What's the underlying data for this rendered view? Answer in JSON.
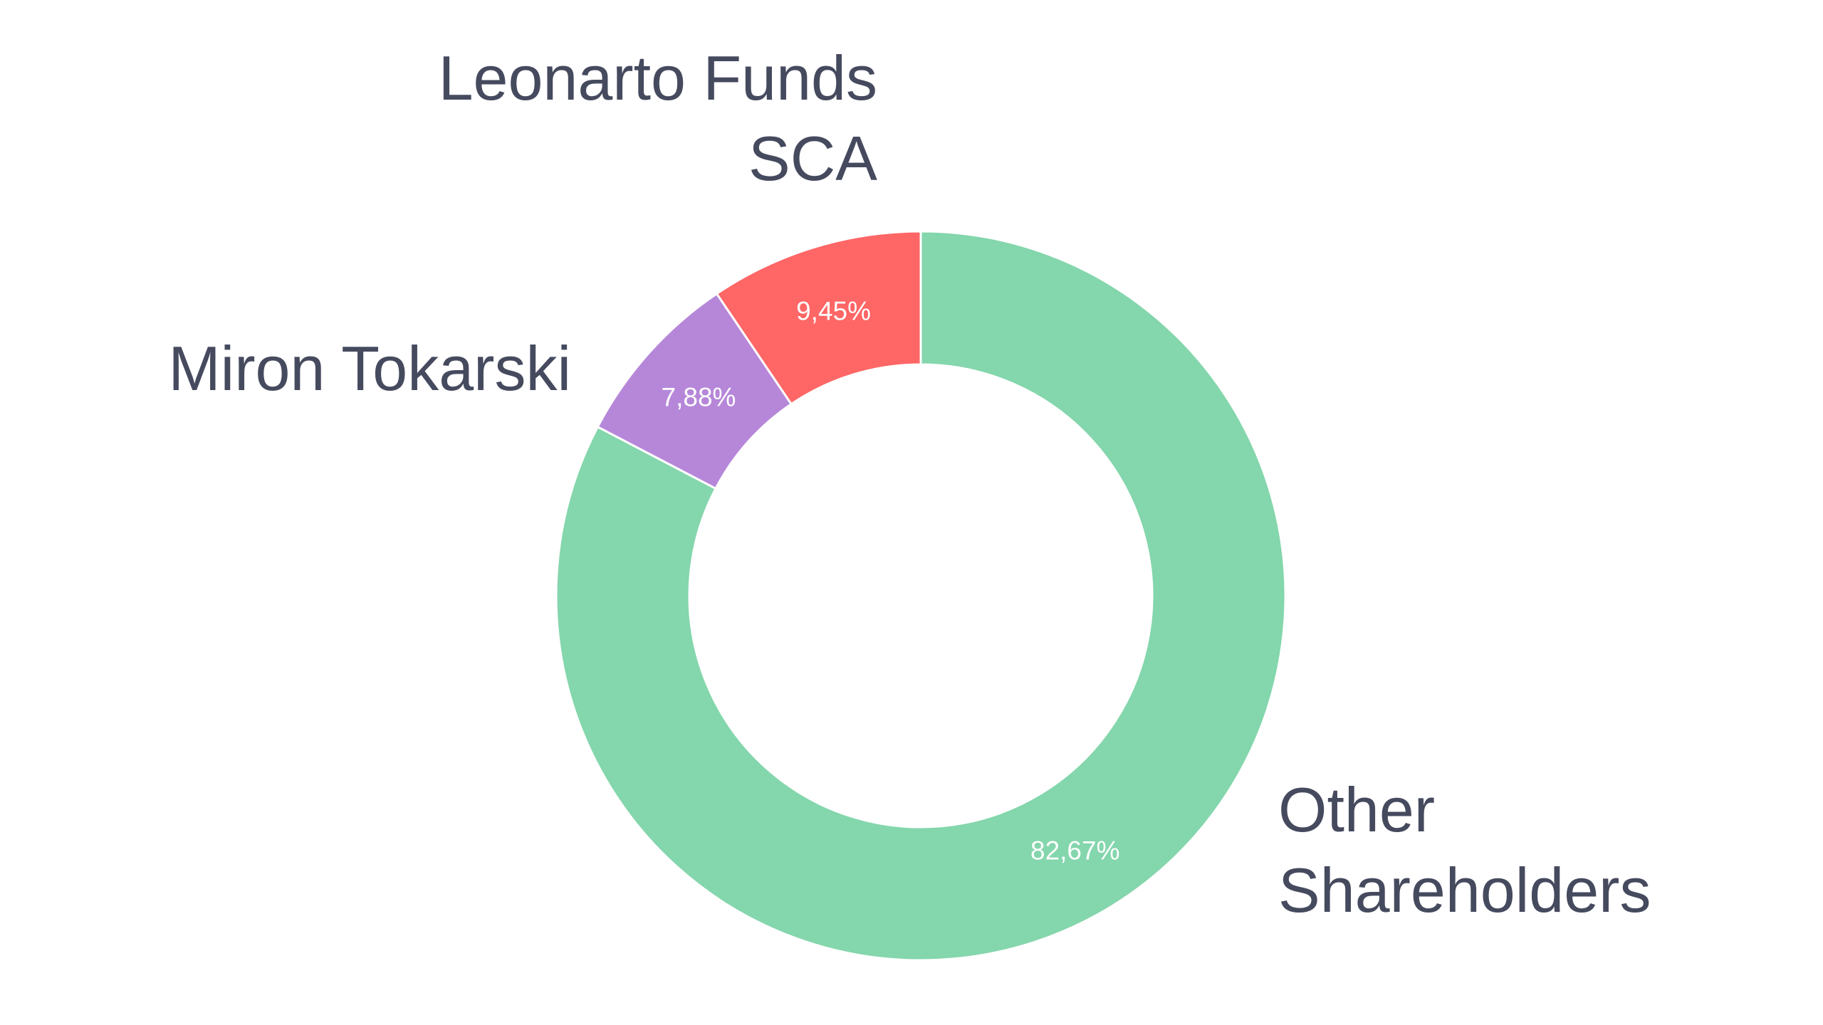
{
  "chart_data": {
    "type": "pie",
    "variant": "donut",
    "categories": [
      "Other Shareholders",
      "Miron Tokarski",
      "Leonarto Funds SCA"
    ],
    "values": [
      82.67,
      7.88,
      9.45
    ],
    "value_labels": [
      "82,67%",
      "7,88%",
      "9,45%"
    ],
    "label_lines": [
      [
        "Other",
        "Shareholders"
      ],
      [
        "Miron Tokarski"
      ],
      [
        "Leonarto Funds",
        "SCA"
      ]
    ],
    "colors": [
      "#84d6ac",
      "#b687d9",
      "#ff6666"
    ],
    "start_angle_deg": 0,
    "direction": "clockwise",
    "legend": "none"
  }
}
